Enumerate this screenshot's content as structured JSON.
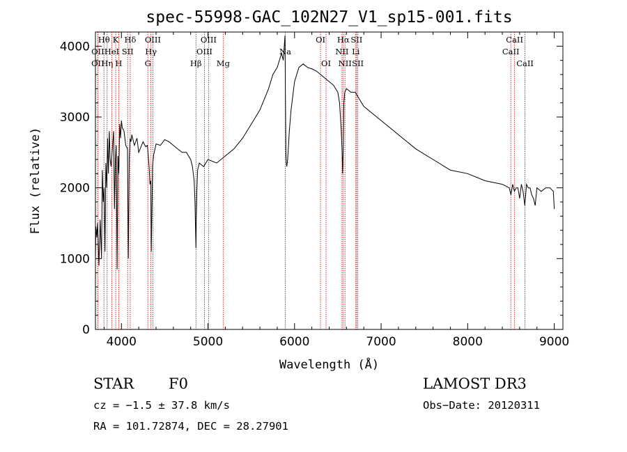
{
  "chart_data": {
    "type": "line",
    "title": "spec-55998-GAC_102N27_V1_sp15-001.fits",
    "xlabel": "Wavelength (Å)",
    "ylabel": "Flux (relative)",
    "xlim": [
      3700,
      9100
    ],
    "ylim": [
      0,
      4200
    ],
    "xticks": [
      4000,
      5000,
      6000,
      7000,
      8000,
      9000
    ],
    "yticks": [
      0,
      1000,
      2000,
      3000,
      4000
    ],
    "series": [
      {
        "name": "flux",
        "x": [
          3700,
          3705,
          3715,
          3725,
          3740,
          3755,
          3770,
          3780,
          3790,
          3800,
          3810,
          3820,
          3830,
          3840,
          3850,
          3860,
          3870,
          3880,
          3890,
          3900,
          3910,
          3920,
          3930,
          3940,
          3950,
          3960,
          3970,
          3980,
          3990,
          4000,
          4010,
          4030,
          4050,
          4070,
          4080,
          4090,
          4100,
          4110,
          4120,
          4150,
          4180,
          4200,
          4250,
          4280,
          4300,
          4310,
          4320,
          4330,
          4340,
          4345,
          4350,
          4360,
          4370,
          4400,
          4450,
          4500,
          4550,
          4600,
          4650,
          4700,
          4750,
          4800,
          4820,
          4840,
          4850,
          4855,
          4861,
          4865,
          4870,
          4880,
          4900,
          4950,
          5000,
          5100,
          5200,
          5300,
          5400,
          5500,
          5600,
          5700,
          5750,
          5800,
          5850,
          5870,
          5890,
          5895,
          5900,
          5905,
          5910,
          5920,
          5930,
          5940,
          5960,
          6000,
          6050,
          6100,
          6150,
          6200,
          6250,
          6300,
          6350,
          6400,
          6450,
          6500,
          6520,
          6540,
          6550,
          6555,
          6563,
          6570,
          6580,
          6600,
          6650,
          6700,
          6750,
          6800,
          7000,
          7200,
          7400,
          7600,
          7800,
          8000,
          8200,
          8400,
          8480,
          8500,
          8520,
          8540,
          8560,
          8580,
          8600,
          8620,
          8640,
          8660,
          8680,
          8700,
          8720,
          8740,
          8760,
          8780,
          8800,
          8850,
          8900,
          8950,
          8990,
          9000
        ],
        "y": [
          1000,
          1450,
          1300,
          1500,
          900,
          1550,
          1000,
          2250,
          1800,
          2000,
          1100,
          2350,
          2000,
          2700,
          2200,
          2800,
          2400,
          2300,
          2450,
          2650,
          2800,
          1700,
          2400,
          2600,
          850,
          2450,
          2200,
          2900,
          2700,
          2950,
          2850,
          2800,
          2600,
          2550,
          1000,
          2400,
          2700,
          2650,
          2750,
          2600,
          2700,
          2500,
          2650,
          2580,
          2600,
          2450,
          2300,
          2050,
          2100,
          1100,
          1500,
          2300,
          2450,
          2620,
          2600,
          2680,
          2650,
          2600,
          2550,
          2500,
          2500,
          2400,
          2300,
          2100,
          1800,
          1500,
          1150,
          1600,
          1900,
          2250,
          2350,
          2300,
          2400,
          2350,
          2450,
          2550,
          2700,
          2900,
          3100,
          3400,
          3600,
          3700,
          3900,
          3800,
          4150,
          3300,
          2500,
          2350,
          2300,
          2400,
          2600,
          2800,
          3100,
          3500,
          3700,
          3750,
          3700,
          3680,
          3650,
          3600,
          3550,
          3500,
          3450,
          3350,
          3200,
          2800,
          2500,
          2200,
          2600,
          3200,
          3350,
          3400,
          3350,
          3350,
          3250,
          3150,
          2950,
          2750,
          2550,
          2400,
          2250,
          2200,
          2100,
          2050,
          2000,
          1900,
          2050,
          1950,
          2000,
          2000,
          1850,
          2050,
          1950,
          1750,
          2050,
          2000,
          2000,
          1900,
          1850,
          1750,
          2000,
          1950,
          2000,
          2000,
          1950,
          1700
        ]
      }
    ],
    "lines": [
      {
        "label": "Hθ",
        "x": 3798,
        "row": 0
      },
      {
        "label": "OII",
        "x": 3727,
        "row": 1
      },
      {
        "label": "OII",
        "x": 3727,
        "row": 2
      },
      {
        "label": "Hη",
        "x": 3835,
        "row": 2
      },
      {
        "label": "K",
        "x": 3934,
        "row": 0
      },
      {
        "label": "HeI",
        "x": 3889,
        "row": 1
      },
      {
        "label": "H",
        "x": 3969,
        "row": 2
      },
      {
        "label": "Hδ",
        "x": 4102,
        "row": 0
      },
      {
        "label": "SII",
        "x": 4072,
        "row": 1
      },
      {
        "label": "OIII",
        "x": 4363,
        "row": 0
      },
      {
        "label": "Hγ",
        "x": 4341,
        "row": 1
      },
      {
        "label": "G",
        "x": 4305,
        "row": 2
      },
      {
        "label": "Hβ",
        "x": 4861,
        "row": 2
      },
      {
        "label": "OIII",
        "x": 5007,
        "row": 0
      },
      {
        "label": "OIII",
        "x": 4959,
        "row": 1
      },
      {
        "label": "Mg",
        "x": 5175,
        "row": 2
      },
      {
        "label": "Na",
        "x": 5893,
        "row": 1
      },
      {
        "label": "OI",
        "x": 6300,
        "row": 0
      },
      {
        "label": "OI",
        "x": 6364,
        "row": 2
      },
      {
        "label": "Hα",
        "x": 6563,
        "row": 0
      },
      {
        "label": "NII",
        "x": 6548,
        "row": 1
      },
      {
        "label": "NII",
        "x": 6583,
        "row": 2
      },
      {
        "label": "SII",
        "x": 6717,
        "row": 0
      },
      {
        "label": "Li",
        "x": 6708,
        "row": 1
      },
      {
        "label": "SII",
        "x": 6731,
        "row": 2
      },
      {
        "label": "CaII",
        "x": 8542,
        "row": 0
      },
      {
        "label": "CaII",
        "x": 8498,
        "row": 1
      },
      {
        "label": "CaII",
        "x": 8662,
        "row": 2
      }
    ]
  },
  "info": {
    "object_class": "STAR",
    "subclass": "F0",
    "survey": "LAMOST DR3",
    "redshift": "cz = −1.5 ± 37.8 km/s",
    "obs_date": "Obs−Date: 20120311",
    "coords": "RA = 101.72874, DEC =  28.27901"
  }
}
